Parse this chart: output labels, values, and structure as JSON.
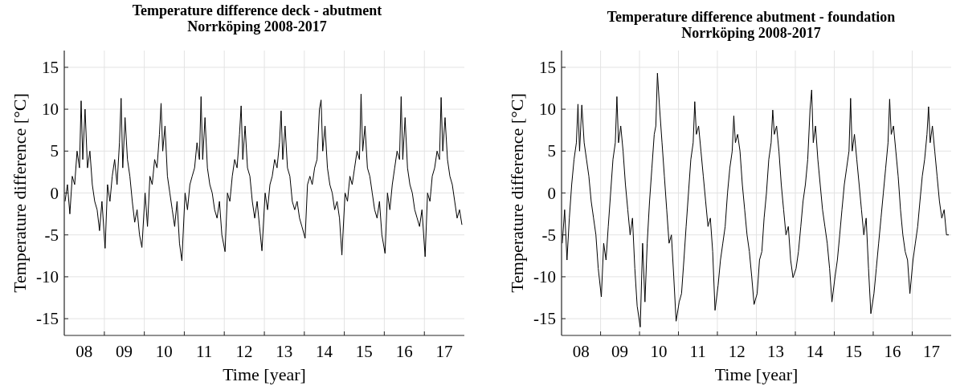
{
  "chart_data": [
    {
      "type": "line",
      "title": "Temperature difference deck - abutment\nNorrköping 2008-2017",
      "xlabel": "Time [year]",
      "ylabel": "Temperature difference [°C]",
      "color": "#000000",
      "grid": true,
      "xlim": [
        "2008-01-01",
        "2018-01-01"
      ],
      "ylim": [
        -17,
        17
      ],
      "yticks": [
        -15,
        -10,
        -5,
        0,
        5,
        10,
        15
      ],
      "xticks": [
        {
          "value": "2008-07-01",
          "label": "08"
        },
        {
          "value": "2009-01-01",
          "label": null
        },
        {
          "value": "2009-07-01",
          "label": "09"
        },
        {
          "value": "2010-01-01",
          "label": null
        },
        {
          "value": "2010-07-01",
          "label": "10"
        },
        {
          "value": "2011-01-01",
          "label": null
        },
        {
          "value": "2011-07-01",
          "label": "11"
        },
        {
          "value": "2012-01-01",
          "label": null
        },
        {
          "value": "2012-07-01",
          "label": "12"
        },
        {
          "value": "2013-01-01",
          "label": null
        },
        {
          "value": "2013-07-01",
          "label": "13"
        },
        {
          "value": "2014-01-01",
          "label": null
        },
        {
          "value": "2014-07-01",
          "label": "14"
        },
        {
          "value": "2015-01-01",
          "label": null
        },
        {
          "value": "2015-07-01",
          "label": "15"
        },
        {
          "value": "2016-01-01",
          "label": null
        },
        {
          "value": "2016-07-01",
          "label": "16"
        },
        {
          "value": "2017-01-01",
          "label": null
        },
        {
          "value": "2017-07-01",
          "label": "17"
        }
      ],
      "x": [
        "2008-01-08",
        "2008-01-30",
        "2008-02-21",
        "2008-03-14",
        "2008-04-05",
        "2008-04-27",
        "2008-05-19",
        "2008-06-03",
        "2008-06-18",
        "2008-07-09",
        "2008-07-31",
        "2008-08-22",
        "2008-09-13",
        "2008-10-05",
        "2008-10-27",
        "2008-11-18",
        "2008-12-10",
        "2009-01-08",
        "2009-01-30",
        "2009-02-21",
        "2009-03-14",
        "2009-04-05",
        "2009-04-27",
        "2009-05-19",
        "2009-06-03",
        "2009-06-18",
        "2009-07-09",
        "2009-07-31",
        "2009-08-22",
        "2009-09-13",
        "2009-10-05",
        "2009-10-27",
        "2009-11-18",
        "2009-12-10",
        "2010-01-08",
        "2010-01-30",
        "2010-02-21",
        "2010-03-14",
        "2010-04-05",
        "2010-04-27",
        "2010-05-19",
        "2010-06-03",
        "2010-06-18",
        "2010-07-09",
        "2010-07-31",
        "2010-08-22",
        "2010-09-13",
        "2010-10-05",
        "2010-10-27",
        "2010-11-18",
        "2010-12-10",
        "2011-01-08",
        "2011-01-30",
        "2011-02-21",
        "2011-03-14",
        "2011-04-05",
        "2011-04-27",
        "2011-05-19",
        "2011-06-03",
        "2011-06-18",
        "2011-07-09",
        "2011-07-31",
        "2011-08-22",
        "2011-09-13",
        "2011-10-05",
        "2011-10-27",
        "2011-11-18",
        "2011-12-10",
        "2012-01-08",
        "2012-01-30",
        "2012-02-21",
        "2012-03-14",
        "2012-04-05",
        "2012-04-27",
        "2012-05-19",
        "2012-06-03",
        "2012-06-18",
        "2012-07-09",
        "2012-07-31",
        "2012-08-22",
        "2012-09-13",
        "2012-10-05",
        "2012-10-27",
        "2012-11-18",
        "2012-12-10",
        "2013-01-08",
        "2013-01-30",
        "2013-02-21",
        "2013-03-14",
        "2013-04-05",
        "2013-04-27",
        "2013-05-19",
        "2013-06-03",
        "2013-06-18",
        "2013-07-09",
        "2013-07-31",
        "2013-08-22",
        "2013-09-13",
        "2013-10-05",
        "2013-10-27",
        "2013-11-18",
        "2013-12-10",
        "2014-01-08",
        "2014-01-30",
        "2014-02-21",
        "2014-03-14",
        "2014-04-05",
        "2014-04-27",
        "2014-05-19",
        "2014-06-03",
        "2014-06-18",
        "2014-07-09",
        "2014-07-31",
        "2014-08-22",
        "2014-09-13",
        "2014-10-05",
        "2014-10-27",
        "2014-11-18",
        "2014-12-10",
        "2015-01-08",
        "2015-01-30",
        "2015-02-21",
        "2015-03-14",
        "2015-04-05",
        "2015-04-27",
        "2015-05-19",
        "2015-06-03",
        "2015-06-18",
        "2015-07-09",
        "2015-07-31",
        "2015-08-22",
        "2015-09-13",
        "2015-10-05",
        "2015-10-27",
        "2015-11-18",
        "2015-12-10",
        "2016-01-08",
        "2016-01-30",
        "2016-02-21",
        "2016-03-14",
        "2016-04-05",
        "2016-04-27",
        "2016-05-19",
        "2016-06-03",
        "2016-06-18",
        "2016-07-09",
        "2016-07-31",
        "2016-08-22",
        "2016-09-13",
        "2016-10-05",
        "2016-10-27",
        "2016-11-18",
        "2016-12-10",
        "2017-01-08",
        "2017-01-30",
        "2017-02-21",
        "2017-03-14",
        "2017-04-05",
        "2017-04-27",
        "2017-05-19",
        "2017-06-03",
        "2017-06-18",
        "2017-07-09",
        "2017-07-31",
        "2017-08-22",
        "2017-09-13",
        "2017-10-05",
        "2017-10-27",
        "2017-11-18",
        "2017-12-10"
      ],
      "values": [
        -1,
        1,
        -2.5,
        2,
        1,
        5,
        3,
        11,
        4,
        10,
        3,
        5,
        1,
        -1,
        -2,
        -4.5,
        -1,
        -6.6,
        1,
        -1,
        2,
        4,
        1,
        6,
        11.3,
        3,
        9,
        4,
        2,
        -1,
        -3.5,
        -2,
        -5,
        -6.5,
        0,
        -4,
        2,
        1,
        4,
        3,
        7,
        10.7,
        5,
        8,
        2,
        0,
        -2,
        -4,
        -1,
        -6,
        -8.1,
        0,
        -2,
        1,
        2,
        3,
        6,
        4,
        11.5,
        4,
        9,
        3,
        1,
        0,
        -2,
        -3,
        -1,
        -5,
        -7,
        0,
        -1,
        2,
        4,
        3,
        7,
        10.4,
        4,
        8,
        3,
        2,
        -1,
        -3,
        -1,
        -4,
        -6.9,
        0,
        -2,
        1,
        2,
        4,
        3,
        6,
        9.8,
        4,
        8,
        3,
        2,
        -1,
        -2,
        -1,
        -3,
        -4,
        -5.4,
        1,
        2,
        1,
        3,
        4,
        10,
        11.1,
        5,
        8,
        3,
        1,
        0,
        -2,
        -1,
        -3,
        -7.4,
        0,
        -1,
        2,
        1,
        3,
        5,
        4,
        11.8,
        5,
        8,
        3,
        2,
        0,
        -2,
        -3,
        -1,
        -5,
        -7.2,
        0,
        -2,
        1,
        3,
        5,
        4,
        11.5,
        4,
        9,
        3,
        1,
        0,
        -2,
        -3,
        -4,
        -2,
        -7.6,
        0,
        -1,
        2,
        3,
        5,
        4,
        11.4,
        5,
        9,
        4,
        2,
        1,
        -1,
        -3,
        -2,
        -3.8
      ]
    },
    {
      "type": "line",
      "title": "Temperature difference abutment - foundation\nNorrköping 2008-2017",
      "xlabel": "Time [year]",
      "ylabel": "Temperature difference [°C]",
      "color": "#000000",
      "grid": true,
      "xlim": [
        "2008-01-01",
        "2018-01-01"
      ],
      "ylim": [
        -17,
        17
      ],
      "yticks": [
        -15,
        -10,
        -5,
        0,
        5,
        10,
        15
      ],
      "xticks": [
        {
          "value": "2008-07-01",
          "label": "08"
        },
        {
          "value": "2009-01-01",
          "label": null
        },
        {
          "value": "2009-07-01",
          "label": "09"
        },
        {
          "value": "2010-01-01",
          "label": null
        },
        {
          "value": "2010-07-01",
          "label": "10"
        },
        {
          "value": "2011-01-01",
          "label": null
        },
        {
          "value": "2011-07-01",
          "label": "11"
        },
        {
          "value": "2012-01-01",
          "label": null
        },
        {
          "value": "2012-07-01",
          "label": "12"
        },
        {
          "value": "2013-01-01",
          "label": null
        },
        {
          "value": "2013-07-01",
          "label": "13"
        },
        {
          "value": "2014-01-01",
          "label": null
        },
        {
          "value": "2014-07-01",
          "label": "14"
        },
        {
          "value": "2015-01-01",
          "label": null
        },
        {
          "value": "2015-07-01",
          "label": "15"
        },
        {
          "value": "2016-01-01",
          "label": null
        },
        {
          "value": "2016-07-01",
          "label": "16"
        },
        {
          "value": "2017-01-01",
          "label": null
        },
        {
          "value": "2017-07-01",
          "label": "17"
        }
      ],
      "x": [
        "2008-01-08",
        "2008-01-30",
        "2008-02-21",
        "2008-03-14",
        "2008-04-05",
        "2008-04-27",
        "2008-05-19",
        "2008-06-03",
        "2008-06-18",
        "2008-07-09",
        "2008-07-31",
        "2008-08-22",
        "2008-09-13",
        "2008-10-05",
        "2008-10-27",
        "2008-11-18",
        "2008-12-10",
        "2009-01-08",
        "2009-01-30",
        "2009-02-21",
        "2009-03-14",
        "2009-04-05",
        "2009-04-27",
        "2009-05-19",
        "2009-06-03",
        "2009-06-18",
        "2009-07-09",
        "2009-07-31",
        "2009-08-22",
        "2009-09-13",
        "2009-10-05",
        "2009-10-27",
        "2009-11-18",
        "2009-12-10",
        "2010-01-08",
        "2010-01-30",
        "2010-02-21",
        "2010-03-14",
        "2010-04-05",
        "2010-04-27",
        "2010-05-19",
        "2010-06-03",
        "2010-06-18",
        "2010-07-09",
        "2010-07-31",
        "2010-08-22",
        "2010-09-13",
        "2010-10-05",
        "2010-10-27",
        "2010-11-18",
        "2010-12-10",
        "2011-01-08",
        "2011-01-30",
        "2011-02-21",
        "2011-03-14",
        "2011-04-05",
        "2011-04-27",
        "2011-05-19",
        "2011-06-03",
        "2011-06-18",
        "2011-07-09",
        "2011-07-31",
        "2011-08-22",
        "2011-09-13",
        "2011-10-05",
        "2011-10-27",
        "2011-11-18",
        "2011-12-10",
        "2012-01-08",
        "2012-01-30",
        "2012-02-21",
        "2012-03-14",
        "2012-04-05",
        "2012-04-27",
        "2012-05-19",
        "2012-06-03",
        "2012-06-18",
        "2012-07-09",
        "2012-07-31",
        "2012-08-22",
        "2012-09-13",
        "2012-10-05",
        "2012-10-27",
        "2012-11-18",
        "2012-12-10",
        "2013-01-08",
        "2013-01-30",
        "2013-02-21",
        "2013-03-14",
        "2013-04-05",
        "2013-04-27",
        "2013-05-19",
        "2013-06-03",
        "2013-06-18",
        "2013-07-09",
        "2013-07-31",
        "2013-08-22",
        "2013-09-13",
        "2013-10-05",
        "2013-10-27",
        "2013-11-18",
        "2013-12-10",
        "2014-01-08",
        "2014-01-30",
        "2014-02-21",
        "2014-03-14",
        "2014-04-05",
        "2014-04-27",
        "2014-05-19",
        "2014-06-03",
        "2014-06-18",
        "2014-07-09",
        "2014-07-31",
        "2014-08-22",
        "2014-09-13",
        "2014-10-05",
        "2014-10-27",
        "2014-11-18",
        "2014-12-10",
        "2015-01-08",
        "2015-01-30",
        "2015-02-21",
        "2015-03-14",
        "2015-04-05",
        "2015-04-27",
        "2015-05-19",
        "2015-06-03",
        "2015-06-18",
        "2015-07-09",
        "2015-07-31",
        "2015-08-22",
        "2015-09-13",
        "2015-10-05",
        "2015-10-27",
        "2015-11-18",
        "2015-12-10",
        "2016-01-08",
        "2016-01-30",
        "2016-02-21",
        "2016-03-14",
        "2016-04-05",
        "2016-04-27",
        "2016-05-19",
        "2016-06-03",
        "2016-06-18",
        "2016-07-09",
        "2016-07-31",
        "2016-08-22",
        "2016-09-13",
        "2016-10-05",
        "2016-10-27",
        "2016-11-18",
        "2016-12-10",
        "2017-01-08",
        "2017-01-30",
        "2017-02-21",
        "2017-03-14",
        "2017-04-05",
        "2017-04-27",
        "2017-05-19",
        "2017-06-03",
        "2017-06-18",
        "2017-07-09",
        "2017-07-31",
        "2017-08-22",
        "2017-09-13",
        "2017-10-05",
        "2017-10-27",
        "2017-11-18",
        "2017-12-10"
      ],
      "values": [
        -6,
        -2,
        -8,
        -3,
        1,
        4,
        6,
        10.6,
        5,
        10.5,
        6,
        4,
        2,
        -1,
        -3,
        -5,
        -9,
        -12.4,
        -6,
        -8,
        -4,
        0,
        4,
        6,
        11.5,
        6,
        8,
        5,
        1,
        -2,
        -5,
        -3,
        -9,
        -13.5,
        -16,
        -6,
        -13,
        -6,
        -1,
        3,
        7,
        8,
        14.3,
        10,
        6,
        2,
        -2,
        -6,
        -5,
        -10,
        -15.3,
        -13,
        -12,
        -8,
        -4,
        0,
        4,
        6,
        10.9,
        7,
        8,
        5,
        2,
        -1,
        -4,
        -3,
        -7,
        -14,
        -11,
        -8,
        -6,
        -4,
        0,
        3,
        5,
        9.2,
        6,
        7,
        5,
        1,
        -2,
        -5,
        -7,
        -10,
        -13.3,
        -12,
        -8,
        -7,
        -3,
        0,
        4,
        6,
        9.9,
        7,
        8,
        5,
        1,
        -2,
        -5,
        -4,
        -8,
        -10.1,
        -9,
        -7,
        -4,
        -1,
        1,
        4,
        10,
        12.3,
        6,
        8,
        4,
        1,
        -2,
        -4,
        -6,
        -9,
        -13,
        -10,
        -8,
        -5,
        -2,
        1,
        3,
        5,
        11.3,
        5,
        7,
        4,
        1,
        -2,
        -5,
        -3,
        -9,
        -14.4,
        -12,
        -9,
        -6,
        -3,
        0,
        3,
        6,
        11.2,
        7,
        8,
        5,
        2,
        -2,
        -5,
        -7,
        -8,
        -12,
        -8,
        -6,
        -4,
        -1,
        2,
        4,
        7,
        10.3,
        6,
        8,
        5,
        2,
        -1,
        -3,
        -2,
        -5,
        -5
      ]
    }
  ]
}
